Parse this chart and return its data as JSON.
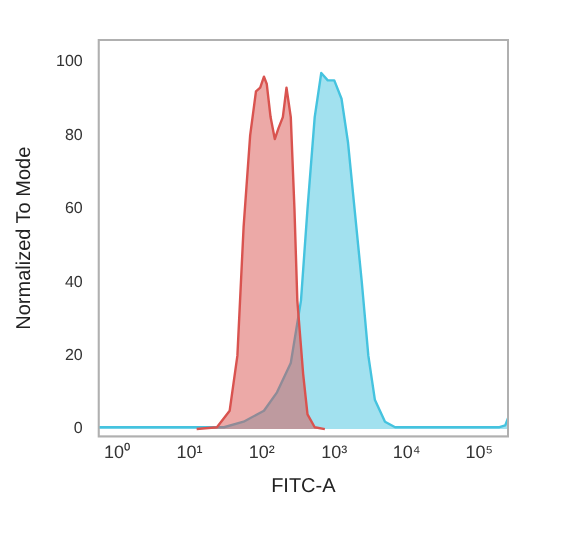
{
  "chart_data": {
    "type": "area",
    "xlabel": "FITC-A",
    "ylabel": "Normalized To Mode",
    "log": "x",
    "grid": false,
    "legend": false,
    "marker": "none",
    "xlim": [
      0.56,
      250000
    ],
    "ylim": [
      -2,
      106
    ],
    "xticks": [
      {
        "value": 1,
        "label": "10⁰"
      },
      {
        "value": 10,
        "label": "10¹"
      },
      {
        "value": 100,
        "label": "10²"
      },
      {
        "value": 1000,
        "label": "10³"
      },
      {
        "value": 10000,
        "label": "10⁴"
      },
      {
        "value": 100000,
        "label": "10⁵"
      }
    ],
    "yticks": [
      0,
      20,
      40,
      60,
      80,
      100
    ],
    "series": [
      {
        "color": "#d9534f",
        "x": [
          12.6,
          24,
          36,
          46,
          56,
          69,
          83,
          95,
          107,
          117,
          132,
          151,
          170,
          195,
          219,
          251,
          282,
          309,
          372,
          427,
          537,
          741
        ],
        "values": [
          0,
          0.5,
          5,
          20,
          55,
          80,
          92,
          93,
          96,
          94,
          85,
          79,
          82,
          85,
          93,
          85,
          60,
          35,
          15,
          4,
          0.5,
          0
        ]
      },
      {
        "color": "#45c3df",
        "x": [
          0.56,
          10,
          30,
          56,
          107,
          162,
          251,
          347,
          427,
          537,
          661,
          813,
          1000,
          1259,
          1549,
          1905,
          2399,
          2951,
          3631,
          5012,
          6918,
          66070,
          190546,
          229087,
          250000
        ],
        "values": [
          0.5,
          0.5,
          0.5,
          2,
          5,
          10,
          18,
          35,
          60,
          85,
          97,
          95,
          95,
          90,
          78,
          60,
          40,
          20,
          8,
          2,
          0.5,
          0.5,
          0.5,
          1,
          3
        ]
      }
    ]
  }
}
